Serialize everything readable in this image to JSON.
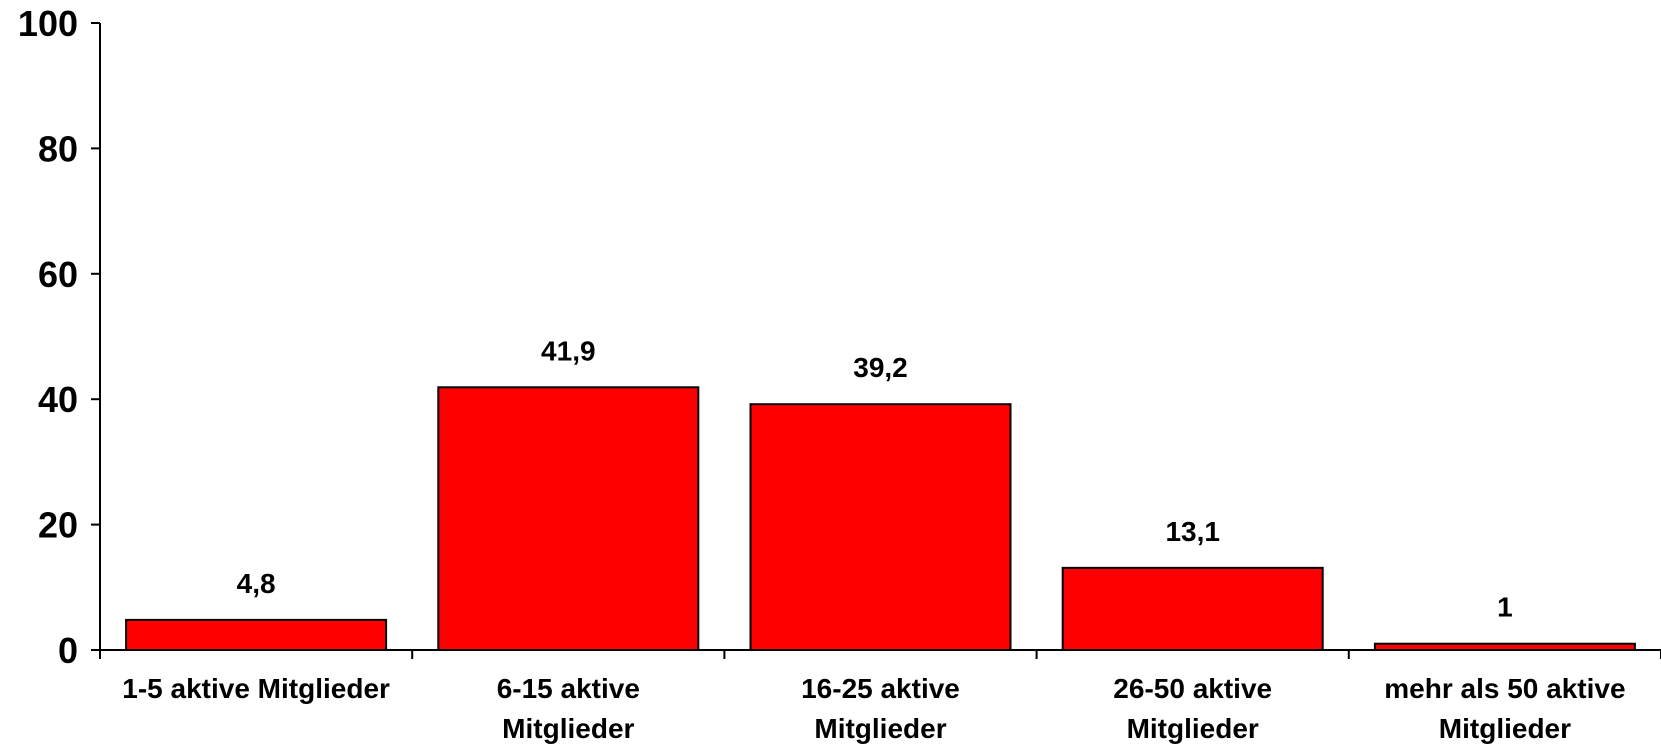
{
  "chart_data": {
    "type": "bar",
    "title": "",
    "xlabel": "",
    "ylabel": "",
    "ylim": [
      0,
      100
    ],
    "yticks": [
      0,
      20,
      40,
      60,
      80,
      100
    ],
    "grid": false,
    "legend": "none",
    "bar_color": "#ff0000",
    "categories": [
      [
        "1-5 aktive Mitglieder"
      ],
      [
        "6-15 aktive",
        "Mitglieder"
      ],
      [
        "16-25 aktive",
        "Mitglieder"
      ],
      [
        "26-50 aktive",
        "Mitglieder"
      ],
      [
        "mehr als 50 aktive",
        "Mitglieder"
      ]
    ],
    "values": [
      4.8,
      41.9,
      39.2,
      13.1,
      1
    ],
    "value_labels": [
      "4,8",
      "41,9",
      "39,2",
      "13,1",
      "1"
    ]
  }
}
